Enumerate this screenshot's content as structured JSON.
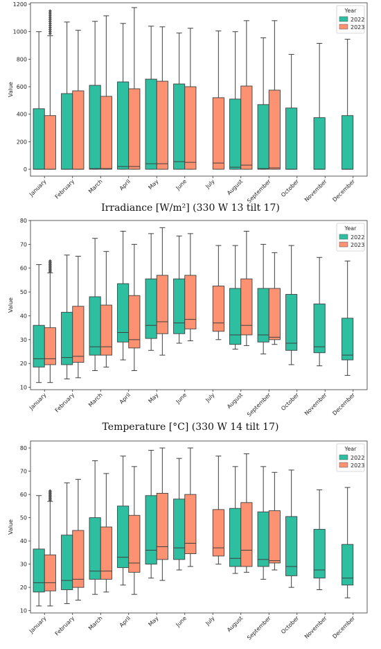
{
  "colors": {
    "2022": "#2ebfa0",
    "2023": "#fc9272",
    "whisker": "#3f3f3f"
  },
  "captions": [
    "Irradiance [W/m²] (330 W 13 tilt 17)",
    "Temperature [°C] (330 W 14 tilt 17)"
  ],
  "chart_data": [
    {
      "type": "box",
      "ylabel": "Value",
      "ylim": [
        -50,
        1210
      ],
      "yticks": [
        0,
        200,
        400,
        600,
        800,
        1000,
        1200
      ],
      "legend": {
        "title": "Year",
        "entries": [
          "2022",
          "2023"
        ],
        "placement": "top-right"
      },
      "categories": [
        "January",
        "February",
        "March",
        "April",
        "May",
        "June",
        "July",
        "August",
        "September",
        "October",
        "November",
        "December"
      ],
      "series": [
        {
          "name": "2022",
          "boxes": [
            {
              "category": "January",
              "whislo": 0,
              "q1": 0,
              "med": 0,
              "q3": 440,
              "whishi": 1000,
              "fliers": []
            },
            {
              "category": "February",
              "whislo": 0,
              "q1": 0,
              "med": 0,
              "q3": 550,
              "whishi": 1070,
              "fliers": []
            },
            {
              "category": "March",
              "whislo": 0,
              "q1": 0,
              "med": 5,
              "q3": 610,
              "whishi": 1075,
              "fliers": []
            },
            {
              "category": "April",
              "whislo": 0,
              "q1": 0,
              "med": 20,
              "q3": 635,
              "whishi": 1060,
              "fliers": []
            },
            {
              "category": "May",
              "whislo": 0,
              "q1": 0,
              "med": 40,
              "q3": 655,
              "whishi": 1040,
              "fliers": []
            },
            {
              "category": "June",
              "whislo": 0,
              "q1": 0,
              "med": 55,
              "q3": 620,
              "whishi": 990,
              "fliers": []
            },
            null,
            {
              "category": "August",
              "whislo": 0,
              "q1": 0,
              "med": 15,
              "q3": 510,
              "whishi": 1000,
              "fliers": []
            },
            {
              "category": "September",
              "whislo": 0,
              "q1": 0,
              "med": 5,
              "q3": 470,
              "whishi": 955,
              "fliers": []
            },
            {
              "category": "October",
              "whislo": 0,
              "q1": 0,
              "med": 0,
              "q3": 445,
              "whishi": 835,
              "fliers": []
            },
            {
              "category": "November",
              "whislo": 0,
              "q1": 0,
              "med": 0,
              "q3": 375,
              "whishi": 915,
              "fliers": []
            },
            {
              "category": "December",
              "whislo": 0,
              "q1": 0,
              "med": 0,
              "q3": 390,
              "whishi": 945,
              "fliers": []
            }
          ]
        },
        {
          "name": "2023",
          "boxes": [
            {
              "category": "January",
              "whislo": 0,
              "q1": 0,
              "med": 0,
              "q3": 390,
              "whishi": 970,
              "fliers": [
                985,
                1000,
                1015,
                1030,
                1045,
                1060,
                1075,
                1090,
                1105,
                1120,
                1135,
                1150
              ]
            },
            {
              "category": "February",
              "whislo": 0,
              "q1": 0,
              "med": 0,
              "q3": 570,
              "whishi": 1010,
              "fliers": []
            },
            {
              "category": "March",
              "whislo": 0,
              "q1": 0,
              "med": 5,
              "q3": 530,
              "whishi": 1115,
              "fliers": []
            },
            {
              "category": "April",
              "whislo": 0,
              "q1": 0,
              "med": 20,
              "q3": 585,
              "whishi": 1175,
              "fliers": []
            },
            {
              "category": "May",
              "whislo": 0,
              "q1": 0,
              "med": 40,
              "q3": 640,
              "whishi": 1035,
              "fliers": []
            },
            {
              "category": "June",
              "whislo": 0,
              "q1": 0,
              "med": 50,
              "q3": 600,
              "whishi": 1025,
              "fliers": []
            },
            {
              "category": "July",
              "whislo": 0,
              "q1": 0,
              "med": 45,
              "q3": 520,
              "whishi": 1005,
              "fliers": []
            },
            {
              "category": "August",
              "whislo": 0,
              "q1": 0,
              "med": 30,
              "q3": 605,
              "whishi": 1080,
              "fliers": []
            },
            {
              "category": "September",
              "whislo": 0,
              "q1": 0,
              "med": 10,
              "q3": 575,
              "whishi": 1080,
              "fliers": []
            },
            null,
            null,
            null
          ]
        }
      ]
    },
    {
      "type": "box",
      "ylabel": "Value",
      "ylim": [
        9,
        80
      ],
      "yticks": [
        10,
        20,
        30,
        40,
        50,
        60,
        70,
        80
      ],
      "legend": {
        "title": "Year",
        "entries": [
          "2022",
          "2023"
        ],
        "placement": "top-right"
      },
      "categories": [
        "January",
        "February",
        "March",
        "April",
        "May",
        "June",
        "July",
        "August",
        "September",
        "October",
        "November",
        "December"
      ],
      "series": [
        {
          "name": "2022",
          "boxes": [
            {
              "category": "January",
              "whislo": 12,
              "q1": 18.5,
              "med": 22,
              "q3": 36,
              "whishi": 61.5,
              "fliers": []
            },
            {
              "category": "February",
              "whislo": 13.5,
              "q1": 19.5,
              "med": 22.5,
              "q3": 41.5,
              "whishi": 65.5,
              "fliers": []
            },
            {
              "category": "March",
              "whislo": 17,
              "q1": 23.5,
              "med": 27,
              "q3": 48,
              "whishi": 72.5,
              "fliers": []
            },
            {
              "category": "April",
              "whislo": 21.5,
              "q1": 29,
              "med": 33,
              "q3": 53.5,
              "whishi": 75.5,
              "fliers": []
            },
            {
              "category": "May",
              "whislo": 25.5,
              "q1": 30.5,
              "med": 36,
              "q3": 55.5,
              "whishi": 74.5,
              "fliers": []
            },
            {
              "category": "June",
              "whislo": 28.5,
              "q1": 32.5,
              "med": 37,
              "q3": 55.5,
              "whishi": 73.5,
              "fliers": []
            },
            null,
            {
              "category": "August",
              "whislo": 26,
              "q1": 28,
              "med": 32,
              "q3": 51.5,
              "whishi": 69.5,
              "fliers": []
            },
            {
              "category": "September",
              "whislo": 24,
              "q1": 29,
              "med": 32,
              "q3": 51.5,
              "whishi": 70,
              "fliers": []
            },
            {
              "category": "October",
              "whislo": 19.5,
              "q1": 25.5,
              "med": 28.5,
              "q3": 49,
              "whishi": 69.5,
              "fliers": []
            },
            {
              "category": "November",
              "whislo": 19,
              "q1": 24.5,
              "med": 27,
              "q3": 45,
              "whishi": 64.5,
              "fliers": []
            },
            {
              "category": "December",
              "whislo": 15,
              "q1": 21.5,
              "med": 23.5,
              "q3": 39,
              "whishi": 63,
              "fliers": []
            }
          ]
        },
        {
          "name": "2023",
          "boxes": [
            {
              "category": "January",
              "whislo": 12,
              "q1": 19.5,
              "med": 22,
              "q3": 35,
              "whishi": 58,
              "fliers": [
                58.5,
                59,
                59.5,
                60,
                60.5,
                61,
                61.5,
                62,
                62.5,
                63
              ]
            },
            {
              "category": "February",
              "whislo": 14,
              "q1": 20.5,
              "med": 23,
              "q3": 44,
              "whishi": 65,
              "fliers": []
            },
            {
              "category": "March",
              "whislo": 18.5,
              "q1": 23.5,
              "med": 27,
              "q3": 44.5,
              "whishi": 67,
              "fliers": []
            },
            {
              "category": "April",
              "whislo": 17,
              "q1": 26.5,
              "med": 30,
              "q3": 48.5,
              "whishi": 70,
              "fliers": []
            },
            {
              "category": "May",
              "whislo": 23.5,
              "q1": 32.5,
              "med": 37.5,
              "q3": 57,
              "whishi": 77,
              "fliers": []
            },
            {
              "category": "June",
              "whislo": 29.5,
              "q1": 34.5,
              "med": 38.5,
              "q3": 57,
              "whishi": 74.5,
              "fliers": []
            },
            {
              "category": "July",
              "whislo": 30,
              "q1": 33.5,
              "med": 37,
              "q3": 52.5,
              "whishi": 69.5,
              "fliers": []
            },
            {
              "category": "August",
              "whislo": 27.5,
              "q1": 32,
              "med": 36,
              "q3": 55.5,
              "whishi": 75.5,
              "fliers": []
            },
            {
              "category": "September",
              "whislo": 28,
              "q1": 30,
              "med": 31,
              "q3": 51.5,
              "whishi": 66.5,
              "fliers": []
            },
            null,
            null,
            null
          ]
        }
      ]
    },
    {
      "type": "box",
      "ylabel": "Value",
      "ylim": [
        9,
        83
      ],
      "yticks": [
        10,
        20,
        30,
        40,
        50,
        60,
        70,
        80
      ],
      "legend": {
        "title": "Year",
        "entries": [
          "2022",
          "2023"
        ],
        "placement": "top-right"
      },
      "categories": [
        "January",
        "February",
        "March",
        "April",
        "May",
        "June",
        "July",
        "August",
        "September",
        "October",
        "November",
        "December"
      ],
      "series": [
        {
          "name": "2022",
          "boxes": [
            {
              "category": "January",
              "whislo": 12,
              "q1": 18,
              "med": 22,
              "q3": 36.5,
              "whishi": 59.5,
              "fliers": []
            },
            {
              "category": "February",
              "whislo": 13,
              "q1": 19,
              "med": 23,
              "q3": 42.5,
              "whishi": 65,
              "fliers": []
            },
            {
              "category": "March",
              "whislo": 17,
              "q1": 23.5,
              "med": 27,
              "q3": 50,
              "whishi": 74.5,
              "fliers": []
            },
            {
              "category": "April",
              "whislo": 21,
              "q1": 28.5,
              "med": 33,
              "q3": 55,
              "whishi": 76.5,
              "fliers": []
            },
            {
              "category": "May",
              "whislo": 24,
              "q1": 30,
              "med": 36,
              "q3": 59.5,
              "whishi": 79,
              "fliers": []
            },
            {
              "category": "June",
              "whislo": 27.5,
              "q1": 32,
              "med": 37,
              "q3": 58,
              "whishi": 75.5,
              "fliers": []
            },
            null,
            {
              "category": "August",
              "whislo": 26,
              "q1": 29,
              "med": 32.5,
              "q3": 54,
              "whishi": 72,
              "fliers": []
            },
            {
              "category": "September",
              "whislo": 23.5,
              "q1": 29,
              "med": 32,
              "q3": 52.5,
              "whishi": 72,
              "fliers": []
            },
            {
              "category": "October",
              "whislo": 20,
              "q1": 25,
              "med": 29,
              "q3": 50.5,
              "whishi": 70.5,
              "fliers": []
            },
            {
              "category": "November",
              "whislo": 19,
              "q1": 24,
              "med": 27.5,
              "q3": 45,
              "whishi": 62,
              "fliers": []
            },
            {
              "category": "December",
              "whislo": 15.5,
              "q1": 21,
              "med": 24,
              "q3": 38.5,
              "whishi": 63,
              "fliers": []
            }
          ]
        },
        {
          "name": "2023",
          "boxes": [
            {
              "category": "January",
              "whislo": 12,
              "q1": 18.5,
              "med": 22,
              "q3": 34,
              "whishi": 57,
              "fliers": [
                57.5,
                58,
                58.5,
                59,
                59.5,
                60,
                60.5,
                61,
                61.5
              ]
            },
            {
              "category": "February",
              "whislo": 14.5,
              "q1": 20,
              "med": 23.5,
              "q3": 44.5,
              "whishi": 66.5,
              "fliers": []
            },
            {
              "category": "March",
              "whislo": 18,
              "q1": 23.5,
              "med": 27,
              "q3": 46,
              "whishi": 69,
              "fliers": []
            },
            {
              "category": "April",
              "whislo": 17,
              "q1": 26.5,
              "med": 30.5,
              "q3": 51,
              "whishi": 72,
              "fliers": []
            },
            {
              "category": "May",
              "whislo": 23,
              "q1": 32,
              "med": 37.5,
              "q3": 60.5,
              "whishi": 80,
              "fliers": []
            },
            {
              "category": "June",
              "whislo": 29,
              "q1": 34.5,
              "med": 39,
              "q3": 60,
              "whishi": 80,
              "fliers": []
            },
            {
              "category": "July",
              "whislo": 30,
              "q1": 33.5,
              "med": 37,
              "q3": 53.5,
              "whishi": 76.5,
              "fliers": []
            },
            {
              "category": "August",
              "whislo": 26.5,
              "q1": 29,
              "med": 36,
              "q3": 56.5,
              "whishi": 77.5,
              "fliers": []
            },
            {
              "category": "September",
              "whislo": 27.5,
              "q1": 30.5,
              "med": 31.5,
              "q3": 53,
              "whishi": 69.5,
              "fliers": []
            },
            null,
            null,
            null
          ]
        }
      ]
    }
  ]
}
